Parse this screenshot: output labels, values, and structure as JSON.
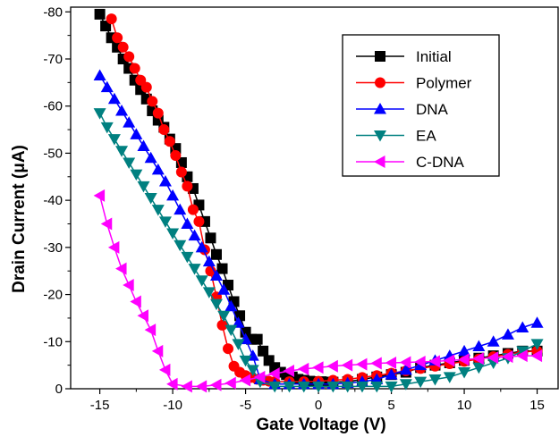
{
  "chart_data": {
    "type": "line",
    "title": "",
    "xlabel": "Gate Voltage (V)",
    "ylabel": "Drain Current (μA)",
    "xlim": [
      -17,
      16.5
    ],
    "ylim": [
      0,
      -81
    ],
    "x_ticks": [
      -15,
      -10,
      -5,
      0,
      5,
      10,
      15
    ],
    "x_tick_labels": [
      "-15",
      "-10",
      "-5",
      "0",
      "5",
      "10",
      "15"
    ],
    "y_ticks": [
      0,
      -10,
      -20,
      -30,
      -40,
      -50,
      -60,
      -70,
      -80
    ],
    "y_tick_labels": [
      "0",
      "-10",
      "-20",
      "-30",
      "-40",
      "-50",
      "-60",
      "-70",
      "-80"
    ],
    "grid": false,
    "legend_position": "top-right",
    "series": [
      {
        "name": "Initial",
        "color": "#000000",
        "marker": "square",
        "x": [
          -15,
          -14.6,
          -14.2,
          -13.8,
          -13.4,
          -13,
          -12.6,
          -12.2,
          -11.8,
          -11.4,
          -11,
          -10.6,
          -10.2,
          -9.8,
          -9.4,
          -9,
          -8.6,
          -8.2,
          -7.8,
          -7.4,
          -7,
          -6.6,
          -6.2,
          -5.8,
          -5.4,
          -5,
          -4.6,
          -4.2,
          -3.8,
          -3.4,
          -3,
          -2.6,
          -2.2,
          -1.8,
          -1.4,
          -1,
          -0.6,
          -0.2,
          0.2,
          0.6,
          1,
          2,
          3,
          4,
          5,
          6,
          7,
          8,
          9,
          10,
          11,
          12,
          13,
          14,
          15
        ],
        "y": [
          -79.5,
          -77,
          -74.5,
          -72.5,
          -70,
          -68,
          -65.5,
          -63.5,
          -61.5,
          -59,
          -57,
          -55.5,
          -53,
          -51,
          -48,
          -45,
          -42.5,
          -39,
          -35.5,
          -32,
          -28.5,
          -25.5,
          -22,
          -18.5,
          -15.5,
          -12,
          -10.5,
          -10.5,
          -8,
          -6,
          -4.5,
          -3.5,
          -3,
          -2.5,
          -2,
          -1.8,
          -1.6,
          -1.5,
          -1.5,
          -1.4,
          -1.4,
          -1.5,
          -2,
          -2.5,
          -3,
          -3.5,
          -4.5,
          -5,
          -5.5,
          -6,
          -6.5,
          -7,
          -7.5,
          -8,
          -8
        ]
      },
      {
        "name": "Polymer",
        "color": "#ff0000",
        "marker": "circle",
        "x": [
          -14.2,
          -13.8,
          -13.4,
          -13,
          -12.6,
          -12.2,
          -11.8,
          -11.4,
          -11,
          -10.6,
          -10.2,
          -9.8,
          -9.4,
          -9,
          -8.6,
          -8.2,
          -7.8,
          -7.4,
          -7,
          -6.6,
          -6.2,
          -5.8,
          -5.4,
          -5,
          -4.6,
          -4.2,
          -3.8,
          -3.4,
          -3,
          -2,
          -1,
          0,
          1,
          2,
          3,
          4,
          5,
          6,
          7,
          8,
          9,
          10,
          11,
          12,
          13,
          14,
          15
        ],
        "y": [
          -78.5,
          -74.5,
          -72.5,
          -70.5,
          -68,
          -65.5,
          -64,
          -61,
          -58.5,
          -55,
          -52.5,
          -49.5,
          -46,
          -43,
          -38,
          -35.5,
          -29.5,
          -25,
          -19.5,
          -13.5,
          -8.5,
          -4.8,
          -3.5,
          -2.8,
          -2.4,
          -2,
          -1.8,
          -1.6,
          -1.5,
          -1.5,
          -1.5,
          -1.6,
          -1.8,
          -2,
          -2.4,
          -2.8,
          -3.3,
          -3.8,
          -4.3,
          -4.8,
          -5.3,
          -5.8,
          -6.3,
          -6.8,
          -7.3,
          -7.8,
          -8
        ]
      },
      {
        "name": "DNA",
        "color": "#0000ff",
        "marker": "triangle-up",
        "x": [
          -15,
          -14.5,
          -14,
          -13.5,
          -13,
          -12.5,
          -12,
          -11.5,
          -11,
          -10.5,
          -10,
          -9.5,
          -9,
          -8.5,
          -8,
          -7.5,
          -7,
          -6.5,
          -6,
          -5.5,
          -5,
          -4.5,
          -4,
          -3,
          -2,
          -1,
          0,
          1,
          2,
          3,
          4,
          5,
          6,
          7,
          8,
          9,
          10,
          11,
          12,
          13,
          14,
          15
        ],
        "y": [
          -66.5,
          -64,
          -61.5,
          -59,
          -56.5,
          -54,
          -51.5,
          -49,
          -46.5,
          -44,
          -41,
          -38,
          -35,
          -32.5,
          -30,
          -27,
          -24,
          -21,
          -17.5,
          -14,
          -10.5,
          -7,
          -2,
          -1,
          -1,
          -1,
          -1,
          -1,
          -1.2,
          -1.5,
          -2,
          -3,
          -4,
          -5,
          -6,
          -7,
          -8,
          -9,
          -10,
          -11.5,
          -13,
          -14
        ]
      },
      {
        "name": "EA",
        "color": "#008080",
        "marker": "triangle-down",
        "x": [
          -15,
          -14.5,
          -14,
          -13.5,
          -13,
          -12.5,
          -12,
          -11.5,
          -11,
          -10.5,
          -10,
          -9.5,
          -9,
          -8.5,
          -8,
          -7.5,
          -7,
          -6.5,
          -6,
          -5.5,
          -5,
          -4.5,
          -4,
          -3,
          -2,
          -1,
          0,
          1,
          2,
          3,
          4,
          5,
          6,
          7,
          8,
          9,
          10,
          11,
          12,
          13,
          14,
          15
        ],
        "y": [
          -58.5,
          -55.5,
          -53,
          -50.5,
          -48,
          -45.5,
          -43,
          -40.5,
          -38,
          -35.5,
          -33,
          -30.5,
          -28,
          -25.5,
          -23,
          -20.5,
          -18,
          -15.5,
          -12.5,
          -9.5,
          -6,
          -4,
          -1.5,
          -0.5,
          -0.5,
          -0.5,
          -0.5,
          -0.5,
          -0.5,
          -0.5,
          -0.5,
          -0.5,
          -1,
          -1.5,
          -2,
          -2.5,
          -3.5,
          -4.5,
          -5.5,
          -6.5,
          -8,
          -9.5
        ]
      },
      {
        "name": "C-DNA",
        "color": "#ff00ff",
        "marker": "triangle-left",
        "x": [
          -15,
          -14.5,
          -14,
          -13.5,
          -13,
          -12.5,
          -12,
          -11.5,
          -11,
          -10.5,
          -10,
          -9,
          -8,
          -7,
          -6,
          -5,
          -4,
          -3,
          -2,
          -1,
          0,
          1,
          2,
          3,
          4,
          5,
          6,
          7,
          8,
          9,
          10,
          11,
          12,
          13,
          14,
          15
        ],
        "y": [
          -41,
          -35,
          -30,
          -25.5,
          -22,
          -18.5,
          -15.5,
          -12.5,
          -8,
          -4,
          -1,
          -0.5,
          -0.5,
          -0.8,
          -1.2,
          -1.8,
          -2.5,
          -3.2,
          -3.8,
          -4.2,
          -4.5,
          -4.8,
          -5,
          -5.2,
          -5.4,
          -5.5,
          -5.6,
          -5.7,
          -5.8,
          -6,
          -6.2,
          -6.4,
          -6.6,
          -6.8,
          -7,
          -7
        ]
      }
    ]
  }
}
